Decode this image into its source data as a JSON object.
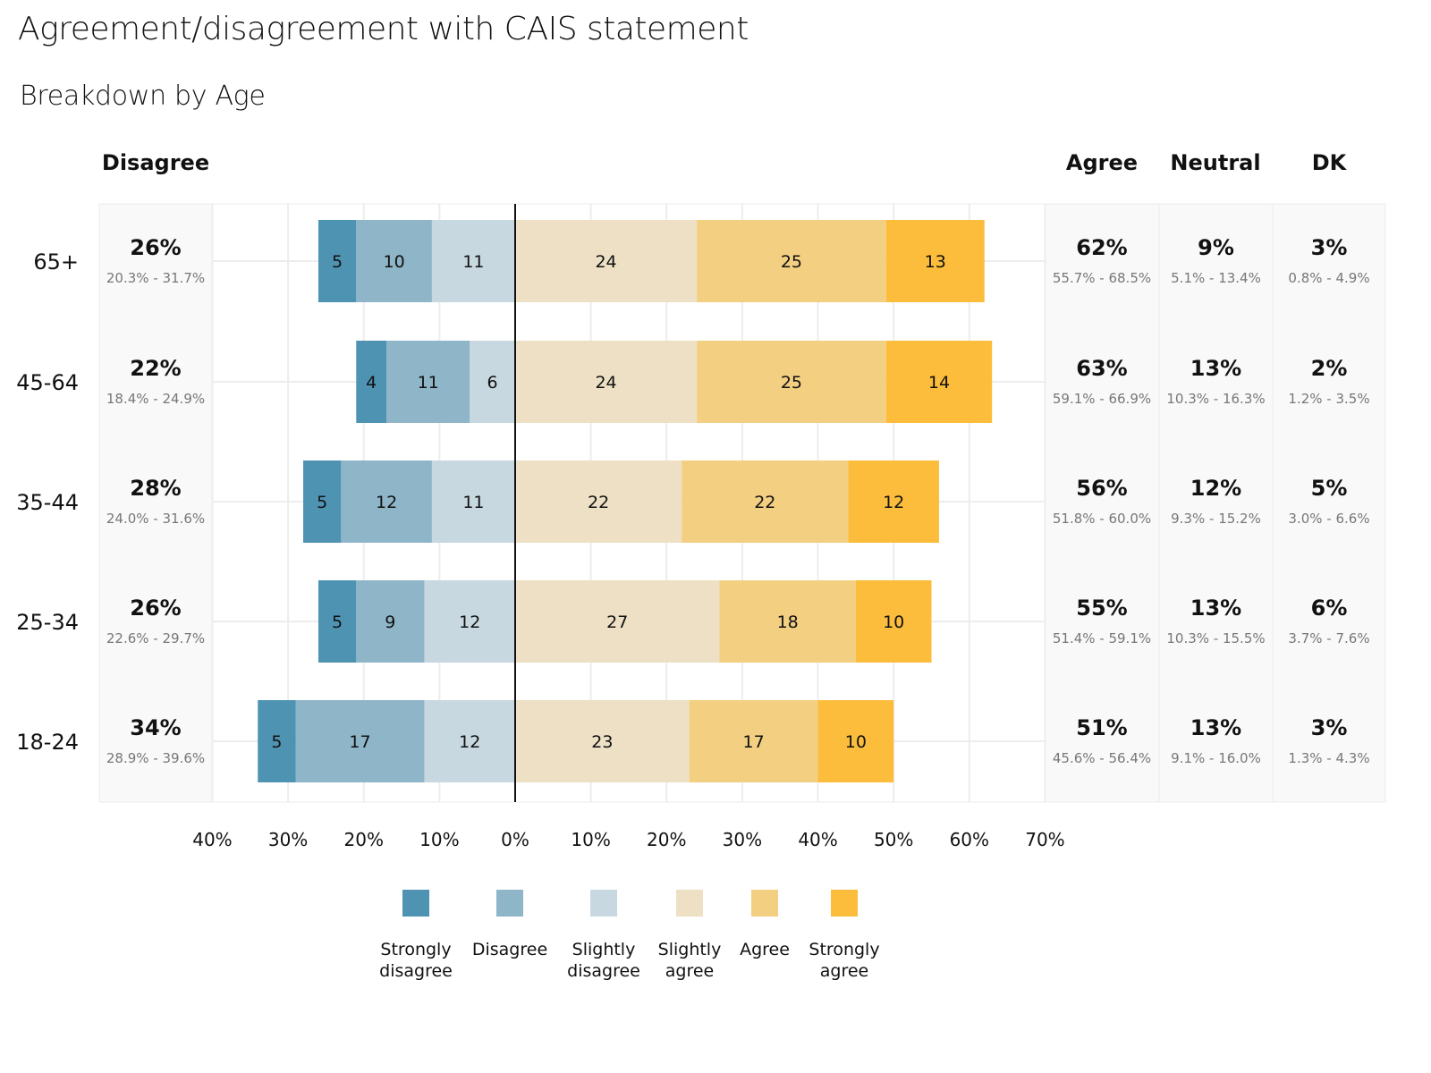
{
  "chart_data": {
    "type": "bar",
    "subtype": "diverging-stacked-horizontal",
    "title": "Agreement/disagreement with CAIS statement",
    "subtitle": "Breakdown by Age",
    "xlabel": "",
    "ylabel": "",
    "xlim": [
      -40,
      70
    ],
    "x_ticks": [
      -40,
      -30,
      -20,
      -10,
      0,
      10,
      20,
      30,
      40,
      50,
      60,
      70
    ],
    "x_tick_labels": [
      "40%",
      "30%",
      "20%",
      "10%",
      "0%",
      "10%",
      "20%",
      "30%",
      "40%",
      "50%",
      "60%",
      "70%"
    ],
    "grid": true,
    "legend_position": "bottom",
    "categories": [
      "65+",
      "45-64",
      "35-44",
      "25-34",
      "18-24"
    ],
    "series": [
      {
        "name": "Strongly disagree",
        "side": "negative",
        "color": "#4f93b3",
        "values": [
          5,
          4,
          5,
          5,
          5
        ]
      },
      {
        "name": "Disagree",
        "side": "negative",
        "color": "#8fb5c8",
        "values": [
          10,
          11,
          12,
          9,
          17
        ]
      },
      {
        "name": "Slightly disagree",
        "side": "negative",
        "color": "#c8d8e0",
        "values": [
          11,
          6,
          11,
          12,
          12
        ]
      },
      {
        "name": "Slightly agree",
        "side": "positive",
        "color": "#ede0c4",
        "values": [
          24,
          24,
          22,
          27,
          23
        ]
      },
      {
        "name": "Agree",
        "side": "positive",
        "color": "#f3cf82",
        "values": [
          25,
          25,
          22,
          18,
          17
        ]
      },
      {
        "name": "Strongly agree",
        "side": "positive",
        "color": "#fbbd3b",
        "values": [
          13,
          14,
          12,
          10,
          10
        ]
      }
    ],
    "legend": [
      {
        "label_lines": [
          "Strongly",
          "disagree"
        ],
        "color": "#4f93b3"
      },
      {
        "label_lines": [
          "Disagree"
        ],
        "color": "#8fb5c8"
      },
      {
        "label_lines": [
          "Slightly",
          "disagree"
        ],
        "color": "#c8d8e0"
      },
      {
        "label_lines": [
          "Slightly",
          "agree"
        ],
        "color": "#ede0c4"
      },
      {
        "label_lines": [
          "Agree"
        ],
        "color": "#f3cf82"
      },
      {
        "label_lines": [
          "Strongly",
          "agree"
        ],
        "color": "#fbbd3b"
      }
    ],
    "summary_headers": {
      "disagree": "Disagree",
      "agree": "Agree",
      "neutral": "Neutral",
      "dk": "DK"
    },
    "summary": {
      "disagree": [
        {
          "value": "26%",
          "ci": "20.3% - 31.7%"
        },
        {
          "value": "22%",
          "ci": "18.4% - 24.9%"
        },
        {
          "value": "28%",
          "ci": "24.0% - 31.6%"
        },
        {
          "value": "26%",
          "ci": "22.6% - 29.7%"
        },
        {
          "value": "34%",
          "ci": "28.9% - 39.6%"
        }
      ],
      "agree": [
        {
          "value": "62%",
          "ci": "55.7% - 68.5%"
        },
        {
          "value": "63%",
          "ci": "59.1% - 66.9%"
        },
        {
          "value": "56%",
          "ci": "51.8% - 60.0%"
        },
        {
          "value": "55%",
          "ci": "51.4% - 59.1%"
        },
        {
          "value": "51%",
          "ci": "45.6% - 56.4%"
        }
      ],
      "neutral": [
        {
          "value": "9%",
          "ci": "5.1% - 13.4%"
        },
        {
          "value": "13%",
          "ci": "10.3% - 16.3%"
        },
        {
          "value": "12%",
          "ci": "9.3% - 15.2%"
        },
        {
          "value": "13%",
          "ci": "10.3% - 15.5%"
        },
        {
          "value": "13%",
          "ci": "9.1% - 16.0%"
        }
      ],
      "dk": [
        {
          "value": "3%",
          "ci": "0.8% - 4.9%"
        },
        {
          "value": "2%",
          "ci": "1.2% - 3.5%"
        },
        {
          "value": "5%",
          "ci": "3.0% - 6.6%"
        },
        {
          "value": "6%",
          "ci": "3.7% - 7.6%"
        },
        {
          "value": "3%",
          "ci": "1.3% - 4.3%"
        }
      ]
    }
  }
}
